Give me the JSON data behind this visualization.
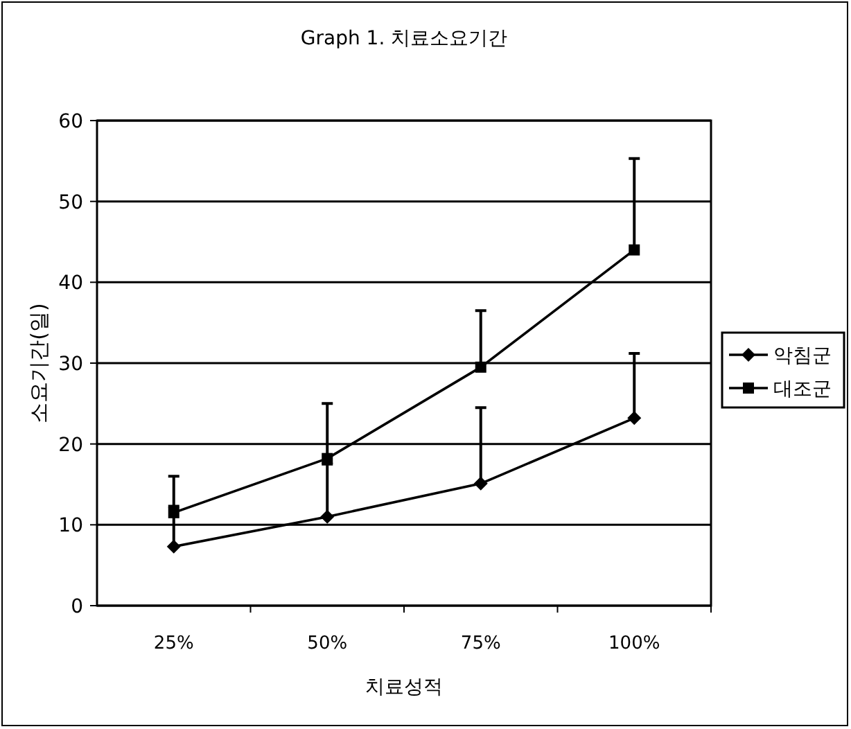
{
  "chart_data": {
    "type": "line",
    "title": "Graph 1. 치료소요기간",
    "xlabel": "치료성적",
    "ylabel": "소요기간(일)",
    "categories": [
      "25%",
      "50%",
      "75%",
      "100%"
    ],
    "series": [
      {
        "name": "악침군",
        "color": "#000000",
        "marker": "diamond",
        "values": [
          7.3,
          11,
          15.1,
          23.2
        ],
        "errors": [
          [
            7.3,
            12.3
          ],
          [
            11,
            17.5
          ],
          [
            15.1,
            24.5
          ],
          [
            23.2,
            31.2
          ]
        ]
      },
      {
        "name": "대조군",
        "color": "#000000",
        "marker": "square",
        "values": [
          11.5,
          18.2,
          29.5,
          44
        ],
        "errors": [
          [
            11.5,
            16
          ],
          [
            18.2,
            25
          ],
          [
            29.5,
            36.5
          ],
          [
            44,
            55.3
          ]
        ]
      }
    ],
    "ylim": [
      0,
      60
    ],
    "yticks": [
      0,
      10,
      20,
      30,
      40,
      50,
      60
    ],
    "grid": "y",
    "legend": "right",
    "line_style": "solid"
  }
}
